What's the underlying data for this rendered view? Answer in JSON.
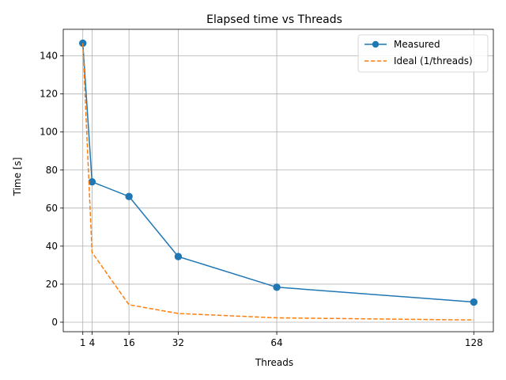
{
  "chart_data": {
    "type": "line",
    "title": "Elapsed time vs Threads",
    "xlabel": "Threads",
    "ylabel": "Time [s]",
    "xlim": [
      -5.35,
      134.35
    ],
    "ylim": [
      -5.0,
      154.0
    ],
    "x_ticks": [
      1,
      4,
      16,
      32,
      64,
      128
    ],
    "y_ticks": [
      0,
      20,
      40,
      60,
      80,
      100,
      120,
      140
    ],
    "grid": true,
    "legend_position": "top-right",
    "series": [
      {
        "name": "Measured",
        "color": "#1f77b4",
        "style": "solid",
        "marker": "circle",
        "x": [
          1,
          4,
          16,
          32,
          64,
          128
        ],
        "y": [
          146.7,
          73.8,
          66.1,
          34.5,
          18.4,
          10.6
        ]
      },
      {
        "name": "Ideal (1/threads)",
        "color": "#ff7f0e",
        "style": "dashed",
        "marker": "none",
        "x": [
          1,
          4,
          16,
          32,
          64,
          128
        ],
        "y": [
          146.7,
          36.7,
          9.17,
          4.58,
          2.29,
          1.15
        ]
      }
    ]
  }
}
